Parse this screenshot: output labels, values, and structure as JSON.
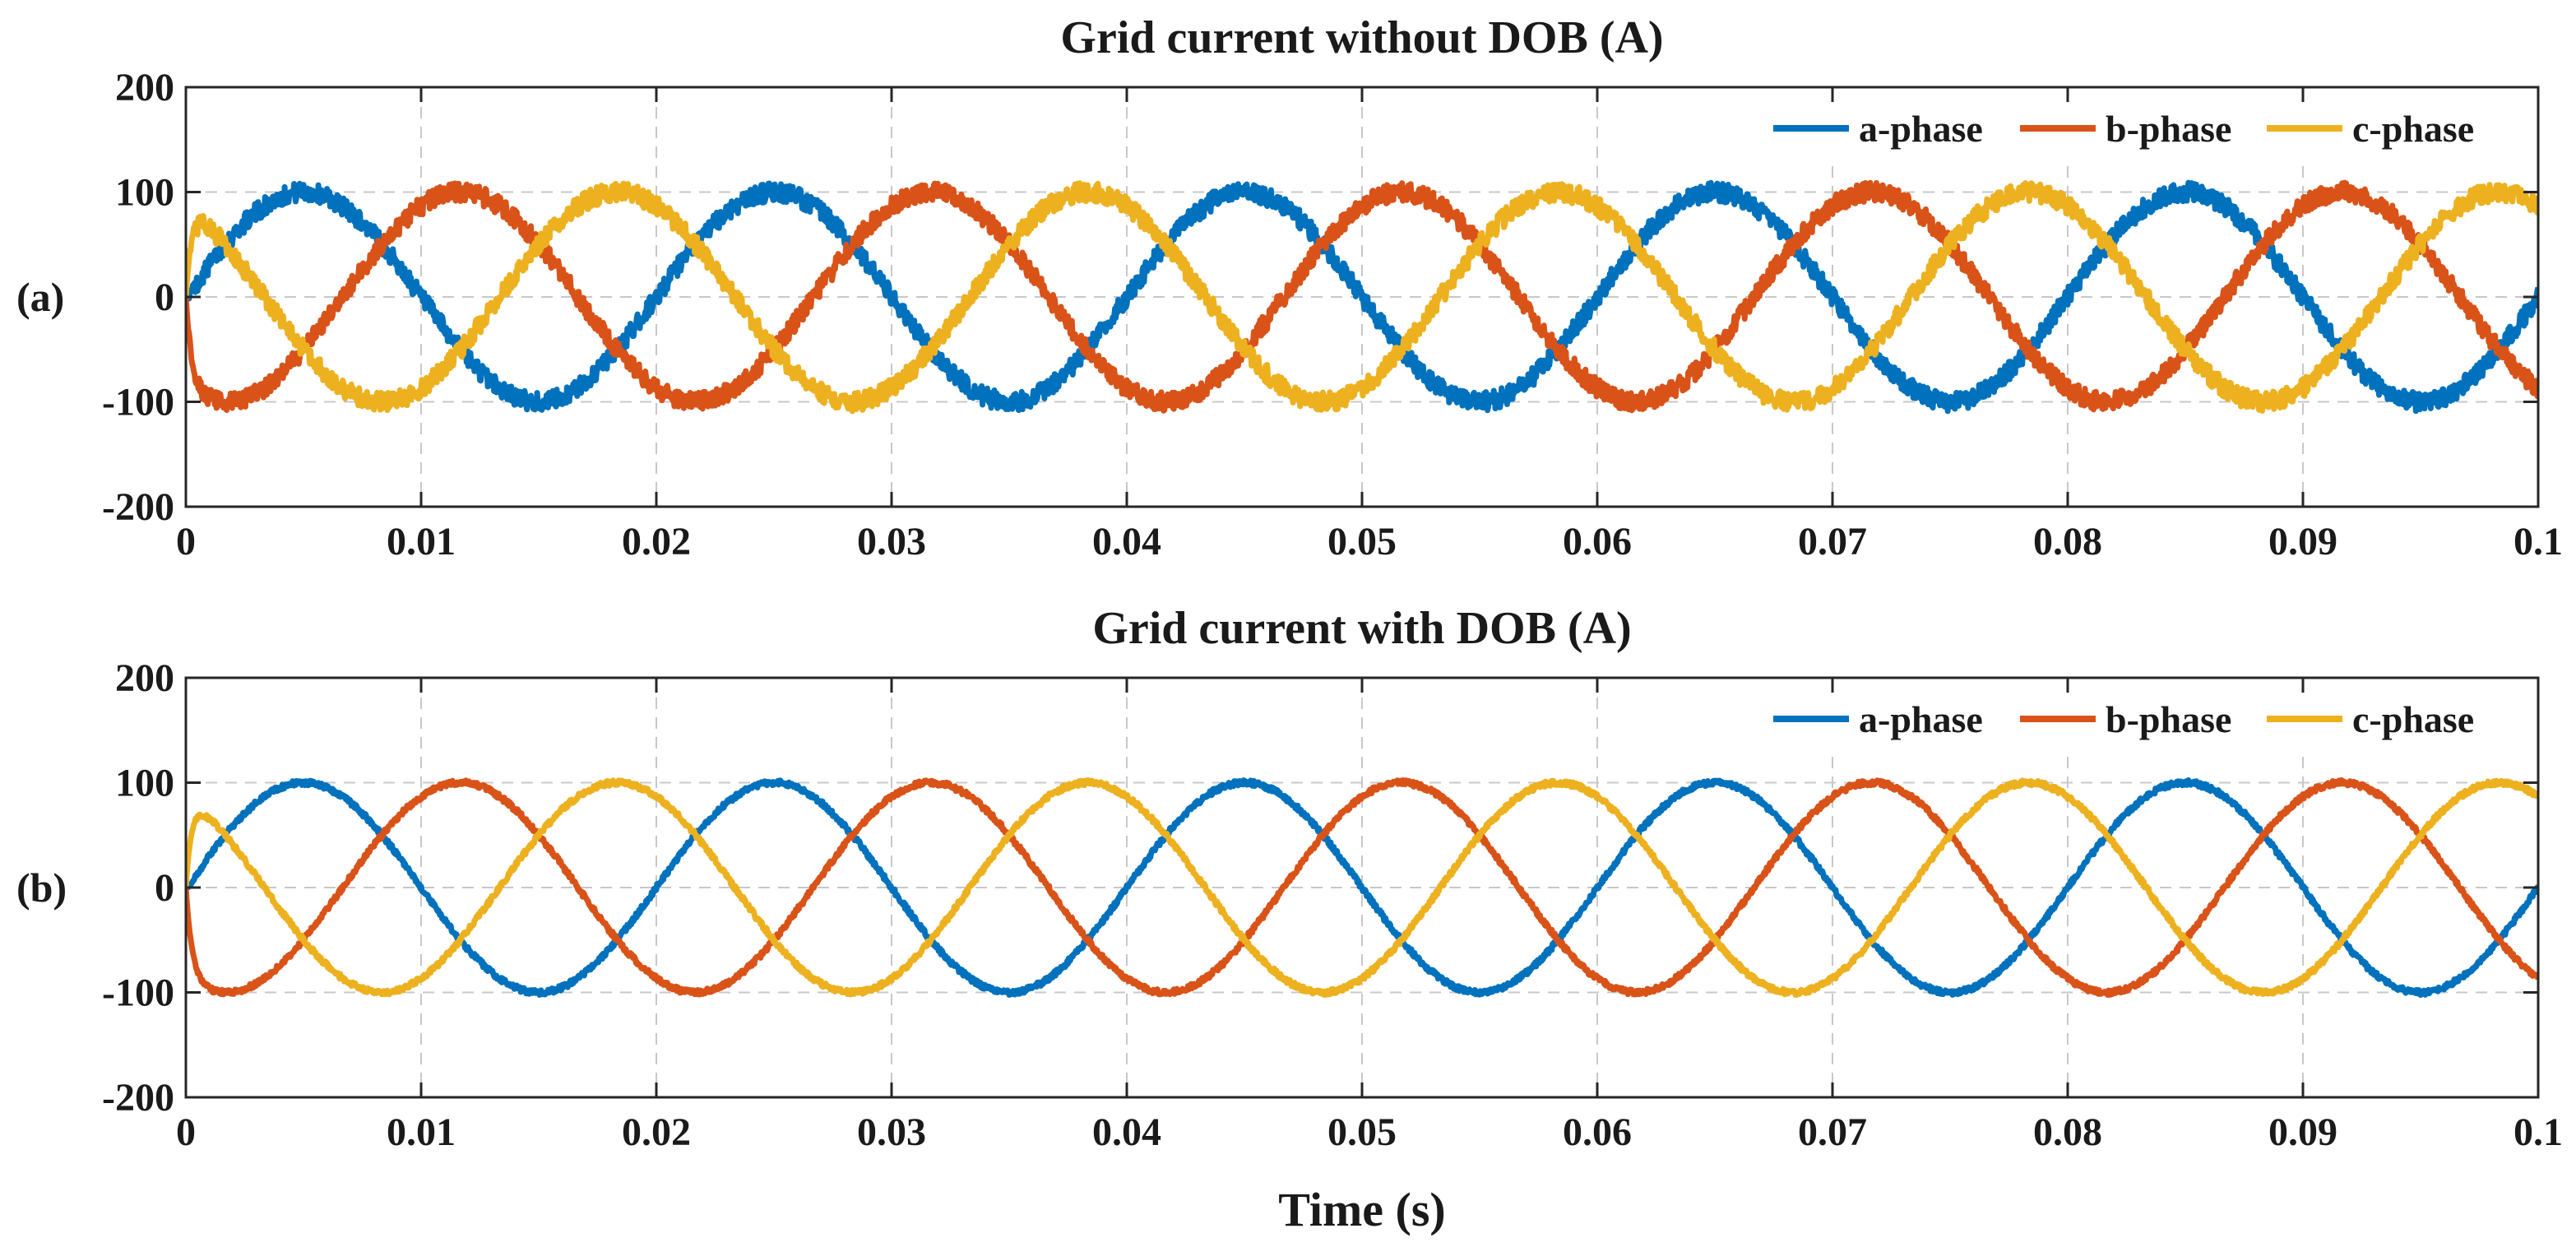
{
  "chart_data": [
    {
      "type": "line",
      "panel_label": "(a)",
      "title": "Grid current without DOB (A)",
      "xlabel": "",
      "ylabel": "",
      "xlim": [
        0,
        0.1
      ],
      "ylim": [
        -200,
        200
      ],
      "x_ticks": [
        0,
        0.01,
        0.02,
        0.03,
        0.04,
        0.05,
        0.06,
        0.07,
        0.08,
        0.09,
        0.1
      ],
      "x_tick_labels": [
        "0",
        "0.01",
        "0.02",
        "0.03",
        "0.04",
        "0.05",
        "0.06",
        "0.07",
        "0.08",
        "0.09",
        "0.1"
      ],
      "y_ticks": [
        200,
        100,
        0,
        -100,
        -200
      ],
      "y_tick_labels": [
        "200",
        "100",
        "0",
        "-100",
        "-200"
      ],
      "grid": true,
      "legend_position": "top-right",
      "frequency_hz": 50,
      "ripple_amplitude": 9,
      "series": [
        {
          "name": "a-phase",
          "color": "#0072BD",
          "amplitude": 100,
          "phase_deg": 0
        },
        {
          "name": "b-phase",
          "color": "#D95319",
          "amplitude": 100,
          "phase_deg": -120
        },
        {
          "name": "c-phase",
          "color": "#EDB120",
          "amplitude": 100,
          "phase_deg": 120
        }
      ]
    },
    {
      "type": "line",
      "panel_label": "(b)",
      "title": "Grid current with DOB (A)",
      "xlabel": "Time (s)",
      "ylabel": "",
      "xlim": [
        0,
        0.1
      ],
      "ylim": [
        -200,
        200
      ],
      "x_ticks": [
        0,
        0.01,
        0.02,
        0.03,
        0.04,
        0.05,
        0.06,
        0.07,
        0.08,
        0.09,
        0.1
      ],
      "x_tick_labels": [
        "0",
        "0.01",
        "0.02",
        "0.03",
        "0.04",
        "0.05",
        "0.06",
        "0.07",
        "0.08",
        "0.09",
        "0.1"
      ],
      "y_ticks": [
        200,
        100,
        0,
        -100,
        -200
      ],
      "y_tick_labels": [
        "200",
        "100",
        "0",
        "-100",
        "-200"
      ],
      "grid": true,
      "legend_position": "top-right",
      "frequency_hz": 50,
      "ripple_amplitude": 2.5,
      "series": [
        {
          "name": "a-phase",
          "color": "#0072BD",
          "amplitude": 100,
          "phase_deg": 0
        },
        {
          "name": "b-phase",
          "color": "#D95319",
          "amplitude": 100,
          "phase_deg": -120
        },
        {
          "name": "c-phase",
          "color": "#EDB120",
          "amplitude": 100,
          "phase_deg": 120
        }
      ]
    }
  ]
}
